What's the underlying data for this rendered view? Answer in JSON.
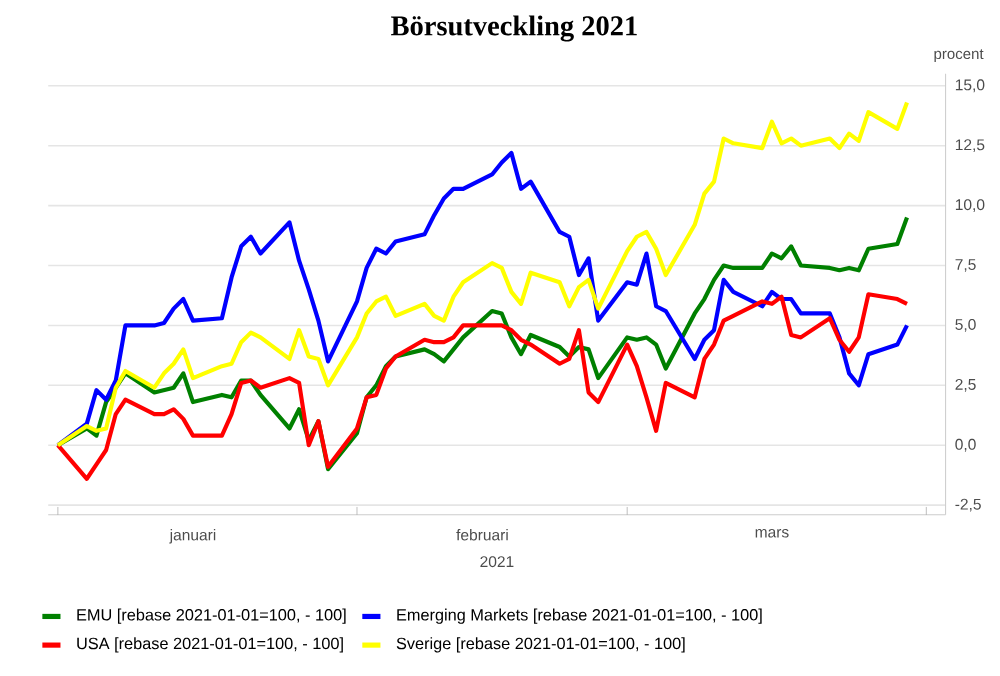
{
  "chart_data": {
    "type": "line",
    "title": "Börsutveckling 2021",
    "xlabel": "2021",
    "ylabel": "procent",
    "x": [
      "2021-01-01",
      "2021-01-04",
      "2021-01-05",
      "2021-01-06",
      "2021-01-07",
      "2021-01-08",
      "2021-01-11",
      "2021-01-12",
      "2021-01-13",
      "2021-01-14",
      "2021-01-15",
      "2021-01-18",
      "2021-01-19",
      "2021-01-20",
      "2021-01-21",
      "2021-01-22",
      "2021-01-25",
      "2021-01-26",
      "2021-01-27",
      "2021-01-28",
      "2021-01-29",
      "2021-02-01",
      "2021-02-02",
      "2021-02-03",
      "2021-02-04",
      "2021-02-05",
      "2021-02-08",
      "2021-02-09",
      "2021-02-10",
      "2021-02-11",
      "2021-02-12",
      "2021-02-15",
      "2021-02-16",
      "2021-02-17",
      "2021-02-18",
      "2021-02-19",
      "2021-02-22",
      "2021-02-23",
      "2021-02-24",
      "2021-02-25",
      "2021-02-26",
      "2021-03-01",
      "2021-03-02",
      "2021-03-03",
      "2021-03-04",
      "2021-03-05",
      "2021-03-08",
      "2021-03-09",
      "2021-03-10",
      "2021-03-11",
      "2021-03-12",
      "2021-03-15",
      "2021-03-16",
      "2021-03-17",
      "2021-03-18",
      "2021-03-19",
      "2021-03-22",
      "2021-03-23",
      "2021-03-24",
      "2021-03-25",
      "2021-03-26",
      "2021-03-29",
      "2021-03-30"
    ],
    "series": [
      {
        "name": "EMU [rebase 2021-01-01=100, - 100]",
        "color": "#008000",
        "values": [
          0,
          0.7,
          0.4,
          1.8,
          2.4,
          3.0,
          2.2,
          2.3,
          2.4,
          3.0,
          1.8,
          2.1,
          2.0,
          2.7,
          2.7,
          2.1,
          0.7,
          1.5,
          0.2,
          1.0,
          -1.0,
          0.5,
          2.0,
          2.5,
          3.3,
          3.7,
          4.0,
          3.8,
          3.5,
          4.0,
          4.5,
          5.6,
          5.5,
          4.5,
          3.8,
          4.6,
          4.1,
          3.7,
          4.1,
          4.0,
          2.8,
          4.5,
          4.4,
          4.5,
          4.2,
          3.2,
          5.5,
          6.1,
          6.9,
          7.5,
          7.4,
          7.4,
          8.0,
          7.8,
          8.3,
          7.5,
          7.4,
          7.3,
          7.4,
          7.3,
          8.2,
          8.4,
          9.5
        ]
      },
      {
        "name": "Emerging Markets [rebase 2021-01-01=100, - 100]",
        "color": "#0000ff",
        "values": [
          0,
          0.9,
          2.3,
          1.9,
          2.7,
          5.0,
          5.0,
          5.1,
          5.7,
          6.1,
          5.2,
          5.3,
          7.0,
          8.3,
          8.7,
          8.0,
          9.3,
          7.7,
          6.5,
          5.2,
          3.5,
          6.0,
          7.4,
          8.2,
          8.0,
          8.5,
          8.8,
          9.6,
          10.3,
          10.7,
          10.7,
          11.3,
          11.8,
          12.2,
          10.7,
          11.0,
          8.9,
          8.7,
          7.1,
          7.8,
          5.2,
          6.8,
          6.7,
          8.0,
          5.8,
          5.6,
          3.6,
          4.4,
          4.8,
          6.9,
          6.4,
          5.8,
          6.4,
          6.1,
          6.1,
          5.5,
          5.5,
          4.5,
          3.0,
          2.5,
          3.8,
          4.2,
          5.0
        ]
      },
      {
        "name": "USA [rebase 2021-01-01=100, - 100]",
        "color": "#ff0000",
        "values": [
          0,
          -1.4,
          -0.8,
          -0.2,
          1.3,
          1.9,
          1.3,
          1.3,
          1.5,
          1.1,
          0.4,
          0.4,
          1.3,
          2.6,
          2.7,
          2.4,
          2.8,
          2.6,
          0.0,
          1.0,
          -0.9,
          0.7,
          2.0,
          2.1,
          3.2,
          3.7,
          4.4,
          4.3,
          4.3,
          4.5,
          5.0,
          5.0,
          5.0,
          4.8,
          4.4,
          4.2,
          3.4,
          3.6,
          4.8,
          2.2,
          1.8,
          4.2,
          3.3,
          2.0,
          0.6,
          2.6,
          2.0,
          3.6,
          4.2,
          5.2,
          5.4,
          6.0,
          5.9,
          6.2,
          4.6,
          4.5,
          5.3,
          4.4,
          3.9,
          4.5,
          6.3,
          6.1,
          5.9
        ]
      },
      {
        "name": "Sverige [rebase 2021-01-01=100, - 100]",
        "color": "#ffff00",
        "values": [
          0,
          0.8,
          0.6,
          0.7,
          2.4,
          3.1,
          2.4,
          3.0,
          3.4,
          4.0,
          2.8,
          3.3,
          3.4,
          4.3,
          4.7,
          4.5,
          3.6,
          4.8,
          3.7,
          3.6,
          2.5,
          4.5,
          5.5,
          6.0,
          6.2,
          5.4,
          5.9,
          5.4,
          5.2,
          6.2,
          6.8,
          7.6,
          7.4,
          6.4,
          5.9,
          7.2,
          6.8,
          5.8,
          6.6,
          6.9,
          5.7,
          8.1,
          8.7,
          8.9,
          8.2,
          7.1,
          9.2,
          10.5,
          11.0,
          12.8,
          12.6,
          12.4,
          13.5,
          12.6,
          12.8,
          12.5,
          12.8,
          12.4,
          13.0,
          12.7,
          13.9,
          13.2,
          14.3
        ]
      }
    ],
    "xlim": [
      "2020-12-31",
      "2021-04-03"
    ],
    "xticks": [
      {
        "value": "2021-01-01",
        "label": null
      },
      {
        "value": "2021-01-15",
        "label": "januari"
      },
      {
        "value": "2021-02-01",
        "label": null
      },
      {
        "value": "2021-02-14",
        "label": "februari"
      },
      {
        "value": "2021-03-01",
        "label": null
      },
      {
        "value": "2021-03-16",
        "label": "mars"
      },
      {
        "value": "2021-04-01",
        "label": null
      }
    ],
    "ylim": [
      -2.9,
      15.5
    ],
    "yticks": [
      {
        "value": -2.5,
        "label": "-2,5"
      },
      {
        "value": 0,
        "label": "0,0"
      },
      {
        "value": 2.5,
        "label": "2,5"
      },
      {
        "value": 5,
        "label": "5,0"
      },
      {
        "value": 7.5,
        "label": "7,5"
      },
      {
        "value": 10,
        "label": "10,0"
      },
      {
        "value": 12.5,
        "label": "12,5"
      },
      {
        "value": 15,
        "label": "15,0"
      }
    ],
    "grid": "y",
    "legend": "bottom",
    "marker": "none",
    "line_style": "solid"
  }
}
